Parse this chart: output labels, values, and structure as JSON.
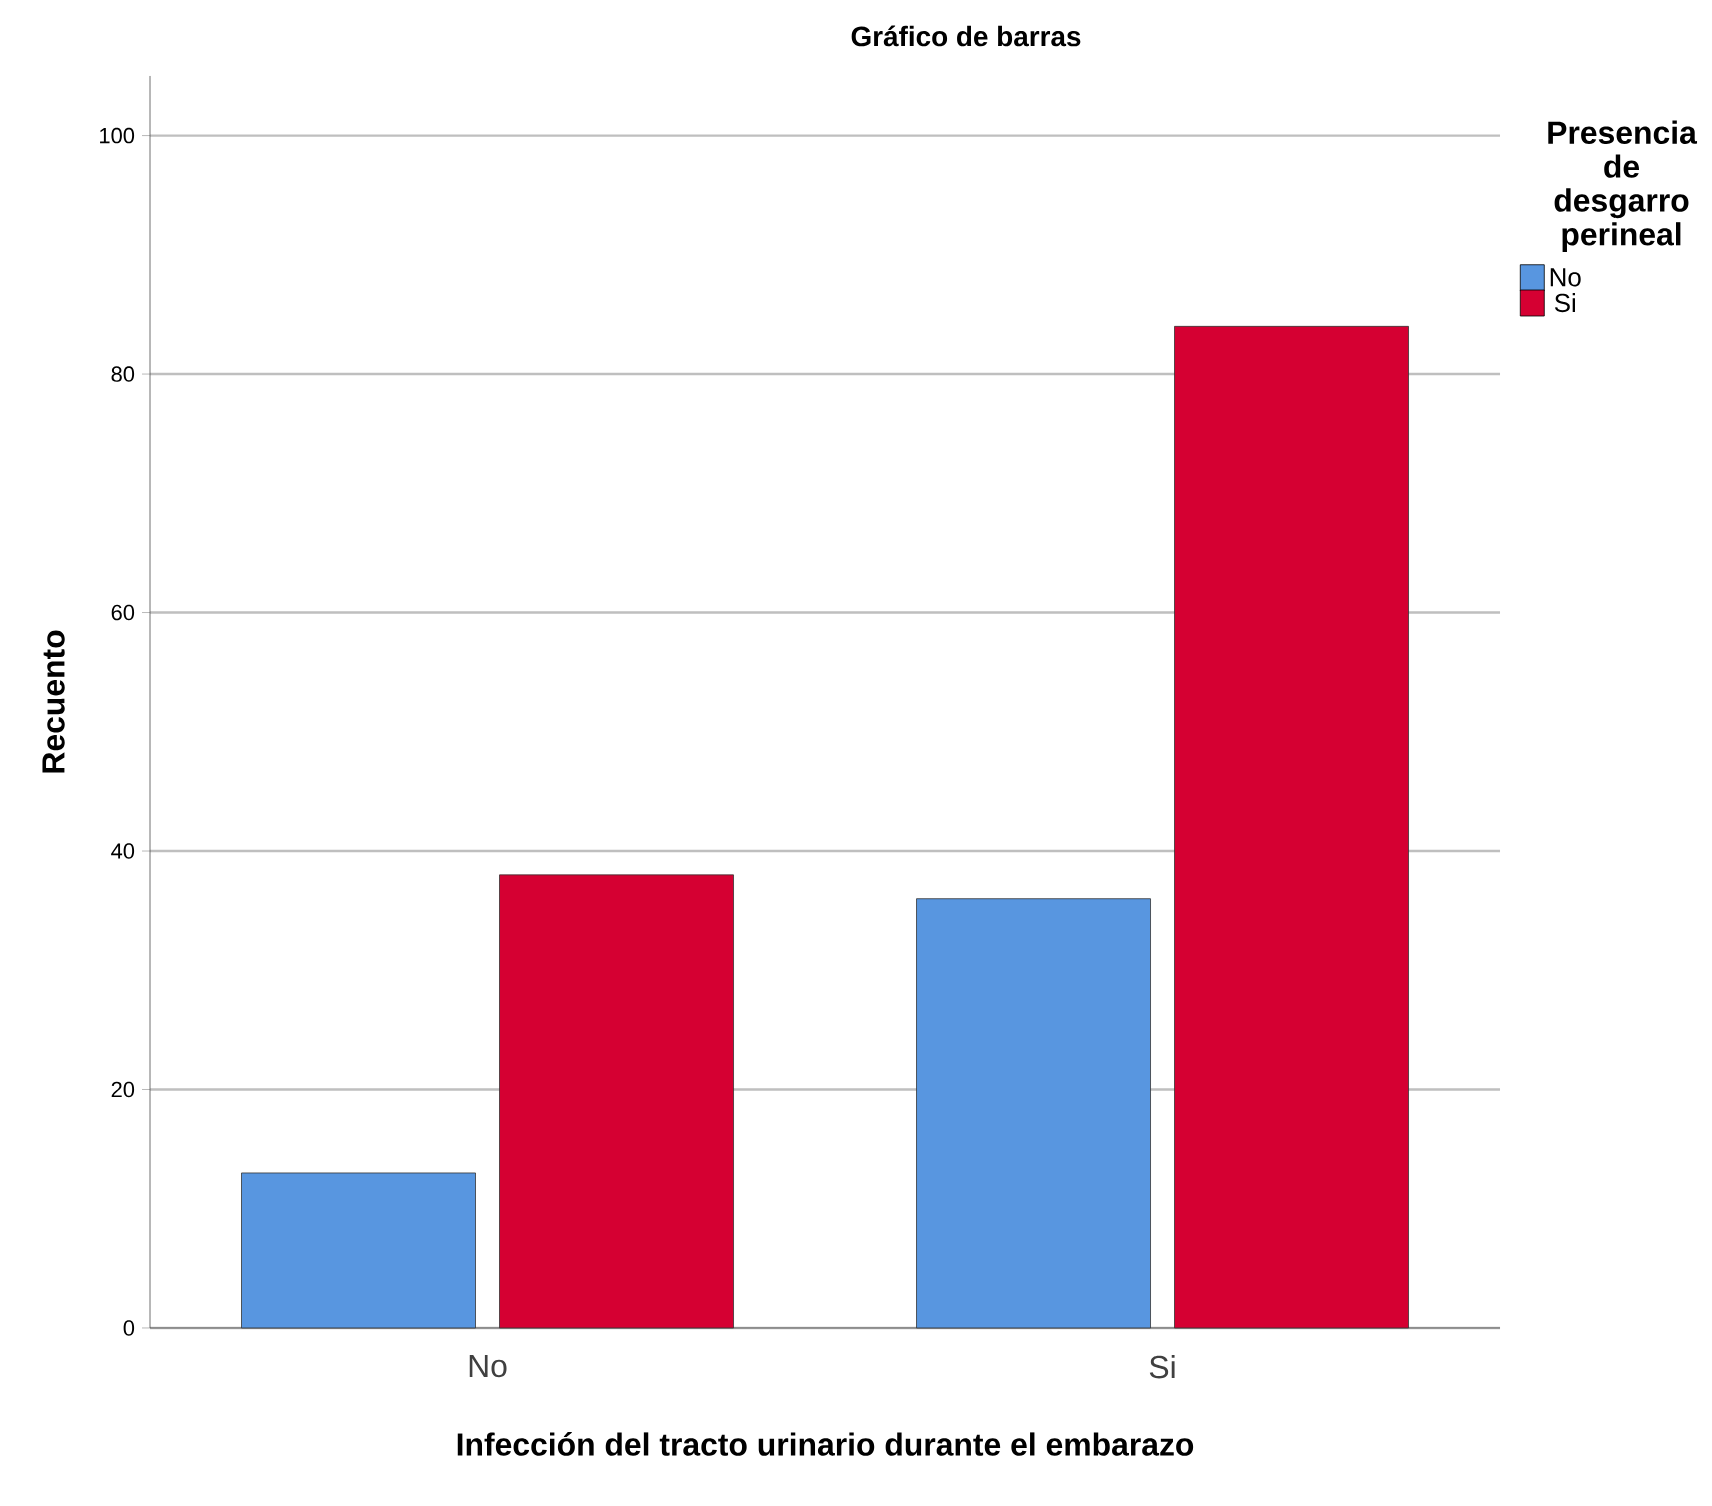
{
  "chart_data": {
    "type": "bar",
    "title": "Gráfico de barras",
    "xlabel": "Infección del tracto urinario durante el embarazo",
    "ylabel": "Recuento",
    "legend_title": "Presencia de desgarro perineal",
    "categories": [
      "No",
      "Si"
    ],
    "series": [
      {
        "name": "No",
        "color": "#5896e0",
        "values": [
          13,
          36
        ]
      },
      {
        "name": "Si",
        "color": "#d50032",
        "values": [
          38,
          84
        ]
      }
    ],
    "ylim": [
      0,
      105
    ],
    "yticks": [
      0,
      20,
      40,
      60,
      80,
      100
    ],
    "grid": "y",
    "legend": "top right"
  }
}
